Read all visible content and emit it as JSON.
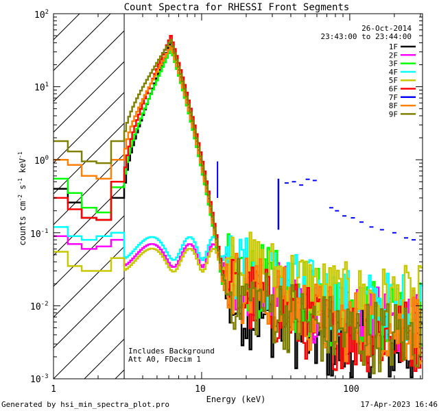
{
  "chart_data": {
    "type": "line",
    "title": "Count Spectra for RHESSI Front Segments",
    "xlabel": "Energy (keV)",
    "ylabel": "counts cm",
    "ylabel_sup1": "-2",
    "ylabel_mid": " s",
    "ylabel_sup2": "-1",
    "ylabel_end": " keV",
    "ylabel_sup3": "-1",
    "x_scale": "log",
    "y_scale": "log",
    "xlim": [
      1,
      310
    ],
    "ylim": [
      0.001,
      100
    ],
    "x_ticks": [
      {
        "value": 1,
        "label": "1"
      },
      {
        "value": 10,
        "label": "10"
      },
      {
        "value": 100,
        "label": "100"
      }
    ],
    "y_ticks": [
      {
        "value": 100,
        "base": "10",
        "exp": "2"
      },
      {
        "value": 10,
        "base": "10",
        "exp": "1"
      },
      {
        "value": 1,
        "base": "10",
        "exp": "0"
      },
      {
        "value": 0.1,
        "base": "10",
        "exp": "-1"
      },
      {
        "value": 0.01,
        "base": "10",
        "exp": "-2"
      },
      {
        "value": 0.001,
        "base": "10",
        "exp": "-3"
      }
    ],
    "hatched_below_keV": 3,
    "date": "26-Oct-2014",
    "time_range": "23:43:00 to 23:44:00",
    "annotation1": "Includes Background",
    "annotation2": "Att A0, FDecim 1",
    "footer_left": "Generated by hsi_min_spectra_plot.pro",
    "footer_right": "17-Apr-2023 16:46",
    "series": [
      {
        "name": "1F",
        "color": "#000000",
        "low": [
          0.4,
          0.26,
          0.16,
          0.15,
          0.3
        ],
        "peak": 40,
        "bg": 0.002,
        "end_keV": 310
      },
      {
        "name": "2F",
        "color": "#ff00ff",
        "low": [
          0.09,
          0.07,
          0.06,
          0.065,
          0.08
        ],
        "peak": 0.052,
        "bg": 0.006,
        "end_keV": 310
      },
      {
        "name": "3F",
        "color": "#00ff00",
        "low": [
          0.55,
          0.35,
          0.22,
          0.19,
          0.42
        ],
        "peak": 33,
        "bg": 0.006,
        "end_keV": 310
      },
      {
        "name": "4F",
        "color": "#00ffff",
        "low": [
          0.12,
          0.09,
          0.08,
          0.09,
          0.1
        ],
        "peak": 0.065,
        "bg": 0.01,
        "end_keV": 310
      },
      {
        "name": "5F",
        "color": "#c8c800",
        "low": [
          0.055,
          0.035,
          0.03,
          0.03,
          0.045
        ],
        "peak": 0.045,
        "bg": 0.012,
        "end_keV": 310
      },
      {
        "name": "6F",
        "color": "#ff0000",
        "low": [
          0.3,
          0.21,
          0.16,
          0.15,
          0.5
        ],
        "peak": 50,
        "bg": 0.003,
        "end_keV": 310
      },
      {
        "name": "7F",
        "color": "#0000ff",
        "points": [
          [
            12.8,
            0.95
          ],
          [
            33,
            0.55
          ],
          [
            37.5,
            0.48
          ],
          [
            42,
            0.5
          ],
          [
            47,
            0.45
          ],
          [
            52,
            0.54
          ],
          [
            58,
            0.52
          ],
          [
            75,
            0.22
          ],
          [
            82,
            0.2
          ],
          [
            92,
            0.17
          ],
          [
            105,
            0.16
          ],
          [
            120,
            0.14
          ],
          [
            140,
            0.12
          ],
          [
            165,
            0.11
          ],
          [
            200,
            0.1
          ],
          [
            240,
            0.085
          ],
          [
            270,
            0.08
          ]
        ]
      },
      {
        "name": "8F",
        "color": "#ff8000",
        "low": [
          1.0,
          0.85,
          0.6,
          0.55,
          1.0
        ],
        "peak": 36,
        "bg": 0.004,
        "end_keV": 310
      },
      {
        "name": "9F",
        "color": "#808000",
        "low": [
          1.8,
          1.3,
          0.95,
          0.9,
          1.8
        ],
        "peak": 44,
        "bg": 0.003,
        "end_keV": 310
      }
    ]
  }
}
